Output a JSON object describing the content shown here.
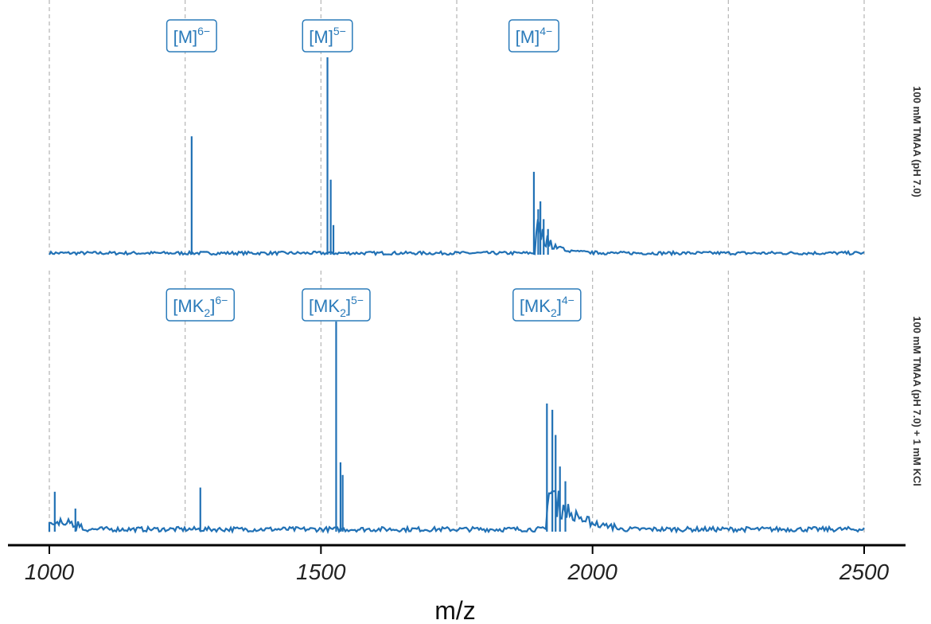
{
  "chart_data": {
    "type": "line",
    "xlabel": "m/z",
    "xlim": [
      1000,
      2500
    ],
    "x_ticks": [
      1000,
      1500,
      2000,
      2500
    ],
    "x_tick_labels": [
      "1000",
      "1500",
      "2000",
      "2500"
    ],
    "grid_x_dashed": [
      1000,
      1250,
      1500,
      1750,
      2000,
      2250,
      2500
    ],
    "grid": "vertical dashed",
    "series_color": "#2171b5",
    "label_color": "#2b7bba",
    "panels": [
      {
        "strip_label": "100 mM TMAA (pH 7.0)",
        "ylim": [
          0,
          1
        ],
        "peaks": [
          {
            "x": 1262,
            "y": 0.6
          },
          {
            "x": 1512,
            "y": 1.0
          },
          {
            "x": 1518,
            "y": 0.38
          },
          {
            "x": 1523,
            "y": 0.15
          },
          {
            "x": 1892,
            "y": 0.42
          },
          {
            "x": 1900,
            "y": 0.23
          },
          {
            "x": 1904,
            "y": 0.27
          },
          {
            "x": 1910,
            "y": 0.18
          },
          {
            "x": 1918,
            "y": 0.13
          }
        ],
        "annotations": [
          {
            "x": 1262,
            "base": "[M]",
            "sub": "",
            "sup": "6−"
          },
          {
            "x": 1512,
            "base": "[M]",
            "sub": "",
            "sup": "5−"
          },
          {
            "x": 1892,
            "base": "[M]",
            "sub": "",
            "sup": "4−"
          }
        ]
      },
      {
        "strip_label": "100 mM TMAA (pH 7.0) + 1 mM KCl",
        "ylim": [
          0,
          1
        ],
        "peaks": [
          {
            "x": 1010,
            "y": 0.19
          },
          {
            "x": 1048,
            "y": 0.11
          },
          {
            "x": 1278,
            "y": 0.21
          },
          {
            "x": 1528,
            "y": 1.0
          },
          {
            "x": 1536,
            "y": 0.33
          },
          {
            "x": 1540,
            "y": 0.27
          },
          {
            "x": 1916,
            "y": 0.61
          },
          {
            "x": 1926,
            "y": 0.58
          },
          {
            "x": 1932,
            "y": 0.46
          },
          {
            "x": 1940,
            "y": 0.31
          },
          {
            "x": 1950,
            "y": 0.24
          }
        ],
        "annotations": [
          {
            "x": 1278,
            "base": "[MK",
            "sub": "2",
            "sup": "6−",
            "close": "]"
          },
          {
            "x": 1528,
            "base": "[MK",
            "sub": "2",
            "sup": "5−",
            "close": "]"
          },
          {
            "x": 1916,
            "base": "[MK",
            "sub": "2",
            "sup": "4−",
            "close": "]"
          }
        ]
      }
    ]
  }
}
